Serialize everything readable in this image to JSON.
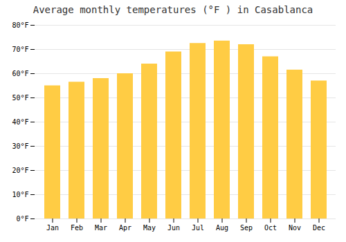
{
  "chart_data": {
    "type": "bar",
    "title": "Average monthly temperatures (°F ) in Casablanca",
    "categories": [
      "Jan",
      "Feb",
      "Mar",
      "Apr",
      "May",
      "Jun",
      "Jul",
      "Aug",
      "Sep",
      "Oct",
      "Nov",
      "Dec"
    ],
    "values": [
      55,
      56.5,
      58,
      60,
      64,
      69,
      72.5,
      73.5,
      72,
      67,
      61.5,
      57
    ],
    "color": "#FFCC44",
    "ylim": [
      0,
      80
    ],
    "yticks": [
      {
        "value": 0,
        "label": "0°F"
      },
      {
        "value": 10,
        "label": "10°F"
      },
      {
        "value": 20,
        "label": "20°F"
      },
      {
        "value": 30,
        "label": "30°F"
      },
      {
        "value": 40,
        "label": "40°F"
      },
      {
        "value": 50,
        "label": "50°F"
      },
      {
        "value": 60,
        "label": "60°F"
      },
      {
        "value": 70,
        "label": "70°F"
      },
      {
        "value": 80,
        "label": "80°F"
      }
    ],
    "grid": true
  }
}
